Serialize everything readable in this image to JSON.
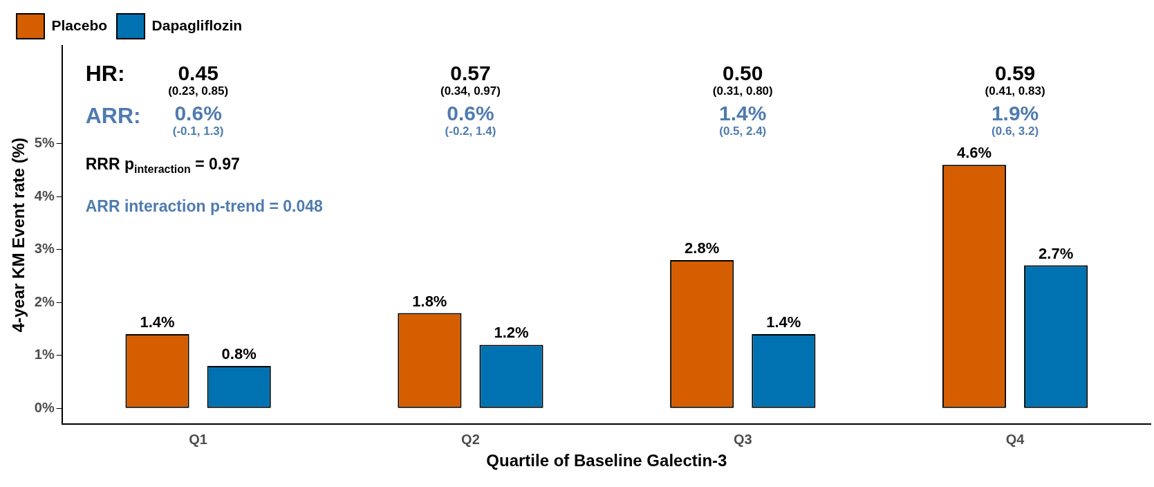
{
  "chart_data": {
    "type": "bar",
    "xlabel": "Quartile of Baseline Galectin-3",
    "ylabel": "4-year KM Event rate (%)",
    "categories": [
      "Q1",
      "Q2",
      "Q3",
      "Q4"
    ],
    "series": [
      {
        "name": "Placebo",
        "color": "#d55e00",
        "values": [
          1.4,
          1.8,
          2.8,
          4.6
        ],
        "value_labels": [
          "1.4%",
          "1.8%",
          "2.8%",
          "4.6%"
        ]
      },
      {
        "name": "Dapagliflozin",
        "color": "#0072b2",
        "values": [
          0.8,
          1.2,
          1.4,
          2.7
        ],
        "value_labels": [
          "0.8%",
          "1.2%",
          "1.4%",
          "2.7%"
        ]
      }
    ],
    "ylim": [
      -0.3,
      6.85
    ],
    "yticks": [
      {
        "value": 0,
        "label": "0%"
      },
      {
        "value": 1,
        "label": "1%"
      },
      {
        "value": 2,
        "label": "2%"
      },
      {
        "value": 3,
        "label": "3%"
      },
      {
        "value": 4,
        "label": "4%"
      },
      {
        "value": 5,
        "label": "5%"
      }
    ],
    "grid": false,
    "legend": "top left",
    "annotations": [
      "HR:",
      "ARR:",
      "RRR p$_{interaction}$ = 0.97",
      "ARR interaction p-trend = 0.048",
      "0.45",
      "(0.23, 0.85)",
      "0.6%",
      "(-0.1, 1.3)",
      "0.57",
      "(0.34, 0.97)",
      "0.6%",
      "(-0.2, 1.4)",
      "0.50",
      "(0.31, 0.80)",
      "1.4%",
      "(0.5, 2.4)",
      "0.59",
      "(0.41, 0.83)",
      "1.9%",
      "(0.6, 3.2)"
    ]
  }
}
